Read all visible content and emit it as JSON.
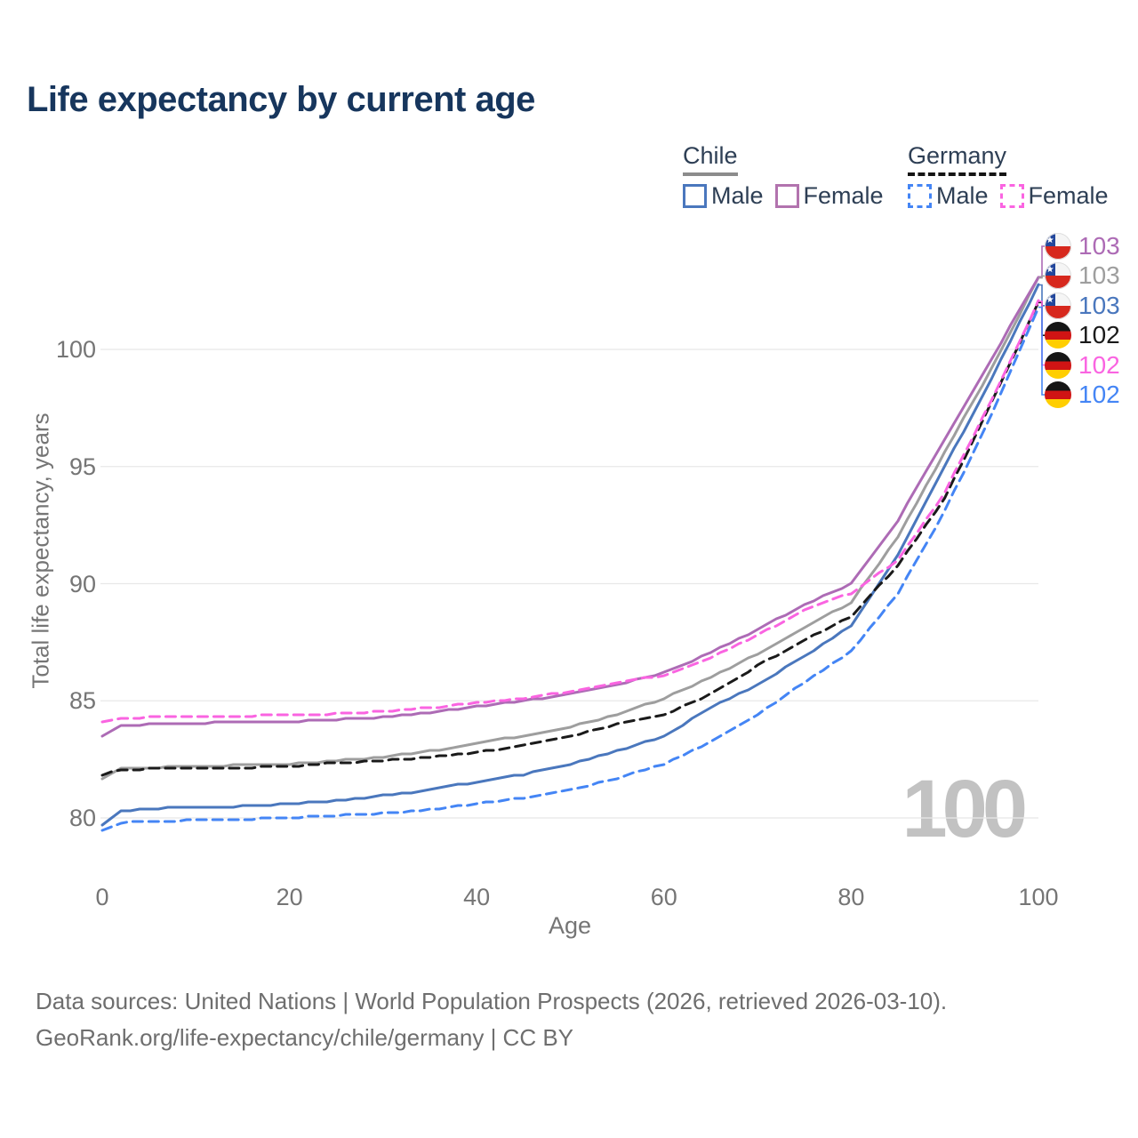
{
  "title": "Life expectancy by current age",
  "legend": {
    "chile": {
      "label": "Chile",
      "male": "Male",
      "female": "Female"
    },
    "germany": {
      "label": "Germany",
      "male": "Male",
      "female": "Female"
    }
  },
  "y_axis": {
    "title": "Total life expectancy, years",
    "ticks": [
      "80",
      "85",
      "90",
      "95",
      "100"
    ]
  },
  "x_axis": {
    "title": "Age",
    "ticks": [
      "0",
      "20",
      "40",
      "60",
      "80",
      "100"
    ]
  },
  "hover_age_watermark": "100",
  "footer": {
    "line1": "Data sources: United Nations | World Population Prospects (2026, retrieved 2026-03-10).",
    "line2": "GeoRank.org/life-expectancy/chile/germany | CC BY"
  },
  "colors": {
    "chile_male": "#4a77bd",
    "chile_female": "#ad6bb5",
    "chile_total": "#9e9e9e",
    "germany_male": "#4485f5",
    "germany_female": "#fa64e1",
    "germany_total": "#1a1a1a",
    "grid": "#e8e8e8",
    "axis_text": "#757575",
    "title_text": "#17365d",
    "watermark": "#c2c2c2"
  },
  "end_labels": [
    {
      "flag": "chile",
      "series": "chile_female",
      "value": "103"
    },
    {
      "flag": "chile",
      "series": "chile_total",
      "value": "103"
    },
    {
      "flag": "chile",
      "series": "chile_male",
      "value": "103"
    },
    {
      "flag": "germany",
      "series": "germany_total",
      "value": "102"
    },
    {
      "flag": "germany",
      "series": "germany_female",
      "value": "102"
    },
    {
      "flag": "germany",
      "series": "germany_male",
      "value": "102"
    }
  ],
  "chart_data": {
    "type": "line",
    "title": "Life expectancy by current age",
    "xlabel": "Age",
    "ylabel": "Total life expectancy, years",
    "xlim": [
      0,
      100
    ],
    "ylim": [
      78.5,
      104
    ],
    "x_ticks": [
      0,
      20,
      40,
      60,
      80,
      100
    ],
    "y_ticks": [
      80,
      85,
      90,
      95,
      100
    ],
    "grid": "horizontal",
    "legend_position": "top-right",
    "x": [
      0,
      2,
      5,
      10,
      15,
      20,
      25,
      30,
      35,
      40,
      45,
      50,
      55,
      60,
      65,
      70,
      75,
      80,
      85,
      90,
      95,
      100
    ],
    "series": [
      {
        "id": "chile_total",
        "name": "Chile (total)",
        "country": "Chile",
        "dash": false,
        "color": "#9e9e9e",
        "values": [
          81.65,
          82.1,
          82.15,
          82.2,
          82.25,
          82.3,
          82.45,
          82.6,
          82.85,
          83.2,
          83.5,
          83.9,
          84.4,
          85.1,
          86.0,
          87.0,
          88.15,
          89.2,
          92.0,
          95.6,
          99.2,
          103.05
        ]
      },
      {
        "id": "chile_female",
        "name": "Chile Female",
        "country": "Chile",
        "dash": false,
        "color": "#ad6bb5",
        "values": [
          83.5,
          83.95,
          84.0,
          84.05,
          84.1,
          84.1,
          84.2,
          84.3,
          84.5,
          84.75,
          85.0,
          85.3,
          85.7,
          86.2,
          87.05,
          88.05,
          89.1,
          90.0,
          92.7,
          96.2,
          99.6,
          103.1
        ]
      },
      {
        "id": "chile_male",
        "name": "Chile Male",
        "country": "Chile",
        "dash": false,
        "color": "#4a77bd",
        "values": [
          79.7,
          80.3,
          80.4,
          80.45,
          80.5,
          80.6,
          80.75,
          80.95,
          81.2,
          81.55,
          81.85,
          82.3,
          82.85,
          83.5,
          84.7,
          85.7,
          86.9,
          88.2,
          91.2,
          95.0,
          98.75,
          102.75
        ]
      },
      {
        "id": "germany_total",
        "name": "Germany (total)",
        "country": "Germany",
        "dash": true,
        "color": "#1a1a1a",
        "values": [
          81.85,
          82.05,
          82.1,
          82.1,
          82.15,
          82.2,
          82.35,
          82.45,
          82.6,
          82.8,
          83.1,
          83.5,
          84.0,
          84.4,
          85.3,
          86.5,
          87.6,
          88.6,
          90.8,
          93.65,
          97.75,
          102.0
        ]
      },
      {
        "id": "germany_female",
        "name": "Germany Female",
        "country": "Germany",
        "dash": true,
        "color": "#fa64e1",
        "values": [
          84.1,
          84.25,
          84.3,
          84.3,
          84.35,
          84.4,
          84.45,
          84.55,
          84.7,
          84.9,
          85.1,
          85.4,
          85.75,
          86.1,
          86.85,
          87.8,
          88.85,
          89.6,
          91.0,
          93.9,
          97.85,
          102.05
        ]
      },
      {
        "id": "germany_male",
        "name": "Germany Male",
        "country": "Germany",
        "dash": true,
        "color": "#4485f5",
        "values": [
          79.45,
          79.8,
          79.85,
          79.9,
          79.95,
          80.0,
          80.1,
          80.2,
          80.35,
          80.6,
          80.85,
          81.2,
          81.7,
          82.3,
          83.25,
          84.4,
          85.8,
          87.1,
          89.6,
          93.1,
          97.25,
          101.8
        ]
      }
    ],
    "end_values": {
      "chile_female": 103,
      "chile_total": 103,
      "chile_male": 103,
      "germany_total": 102,
      "germany_female": 102,
      "germany_male": 102
    }
  }
}
